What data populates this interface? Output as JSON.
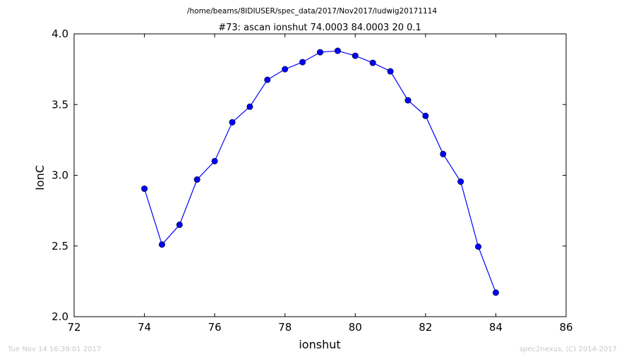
{
  "chart_data": {
    "type": "line",
    "suptitle": "/home/beams/8IDIUSER/spec_data/2017/Nov2017/ludwig20171114",
    "title": "#73: ascan  ionshut 74.0003 84.0003  20 0.1",
    "xlabel": "ionshut",
    "ylabel": "IonC",
    "xlim": [
      72,
      86
    ],
    "ylim": [
      2.0,
      4.0
    ],
    "xticks": [
      "72",
      "74",
      "76",
      "78",
      "80",
      "82",
      "84",
      "86"
    ],
    "yticks": [
      "2.0",
      "2.5",
      "3.0",
      "3.5",
      "4.0"
    ],
    "grid": false,
    "series": [
      {
        "color": "#0000ff",
        "marker": "circle",
        "x": [
          74.0,
          74.5,
          75.0,
          75.5,
          76.0,
          76.5,
          77.0,
          77.5,
          78.0,
          78.5,
          79.0,
          79.5,
          80.0,
          80.5,
          81.0,
          81.5,
          82.0,
          82.5,
          83.0,
          83.5,
          84.0
        ],
        "y": [
          2.905,
          2.51,
          2.65,
          2.97,
          3.1,
          3.375,
          3.485,
          3.675,
          3.75,
          3.8,
          3.87,
          3.88,
          3.845,
          3.795,
          3.735,
          3.53,
          3.42,
          3.15,
          2.955,
          2.495,
          2.17
        ]
      }
    ]
  },
  "footer": {
    "timestamp": "Tue Nov 14 16:39:01 2017",
    "credit": "spec2nexus, (C) 2014-2017"
  }
}
